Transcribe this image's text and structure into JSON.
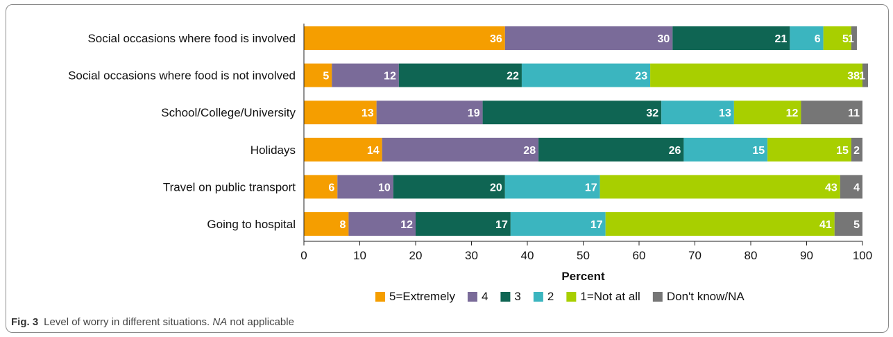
{
  "chart_data": {
    "type": "bar",
    "orientation": "horizontal",
    "stacked": true,
    "categories": [
      "Social occasions where food is involved",
      "Social occasions where food is not involved",
      "School/College/University",
      "Holidays",
      "Travel on public transport",
      "Going to hospital"
    ],
    "series": [
      {
        "name": "5=Extremely",
        "color": "#f59e00",
        "values": [
          36,
          5,
          13,
          14,
          6,
          8
        ]
      },
      {
        "name": "4",
        "color": "#7a6b99",
        "values": [
          30,
          12,
          19,
          28,
          10,
          12
        ]
      },
      {
        "name": "3",
        "color": "#0f6553",
        "values": [
          21,
          22,
          32,
          26,
          20,
          17
        ]
      },
      {
        "name": "2",
        "color": "#3bb5bf",
        "values": [
          6,
          23,
          13,
          15,
          17,
          17
        ]
      },
      {
        "name": "1=Not at all",
        "color": "#a8cf00",
        "values": [
          5,
          38,
          12,
          15,
          43,
          41
        ]
      },
      {
        "name": "Don't know/NA",
        "color": "#767676",
        "values": [
          1,
          1,
          11,
          2,
          4,
          5
        ]
      }
    ],
    "xlabel": "Percent",
    "ylabel": "",
    "xlim": [
      0,
      100
    ],
    "xticks": [
      0,
      10,
      20,
      30,
      40,
      50,
      60,
      70,
      80,
      90,
      100
    ],
    "legend_position": "bottom",
    "grid": false
  },
  "caption": {
    "label": "Fig. 3",
    "text_before": "Level of worry in different situations.",
    "abbr": "NA",
    "text_after": "not applicable"
  }
}
